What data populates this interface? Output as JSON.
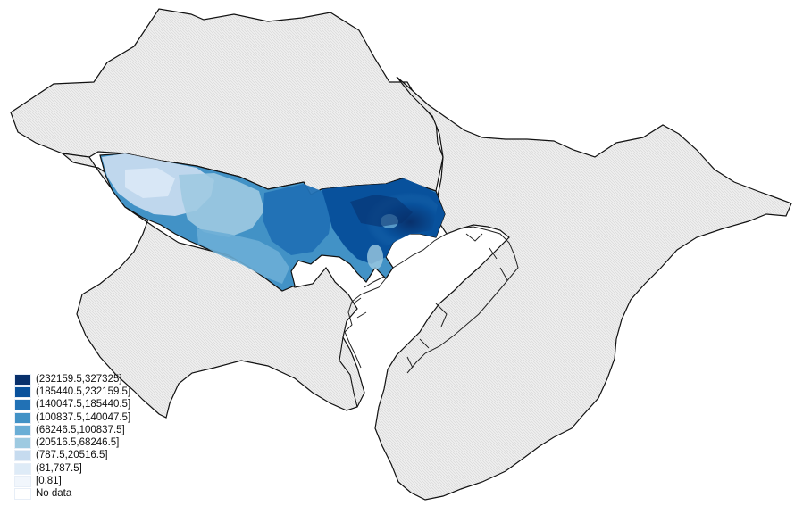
{
  "map": {
    "colors": {
      "background_fill": "#eeeeee",
      "background_hatch": "#d8d8d8",
      "outline": "#111111",
      "coast": "#222222"
    }
  },
  "legend": {
    "items": [
      {
        "label": "(232159.5,327325]",
        "color": "#08306b"
      },
      {
        "label": "(185440.5,232159.5]",
        "color": "#08519c"
      },
      {
        "label": "(140047.5,185440.5]",
        "color": "#2171b5"
      },
      {
        "label": "(100837.5,140047.5]",
        "color": "#4292c6"
      },
      {
        "label": "(68246.5,100837.5]",
        "color": "#6baed6"
      },
      {
        "label": "(20516.5,68246.5]",
        "color": "#9ecae1"
      },
      {
        "label": "(787.5,20516.5]",
        "color": "#c6dbef"
      },
      {
        "label": "(81,787.5]",
        "color": "#deebf7"
      },
      {
        "label": "[0,81]",
        "color": "#f1f6fc"
      },
      {
        "label": "No data",
        "color": "#ffffff"
      }
    ]
  }
}
